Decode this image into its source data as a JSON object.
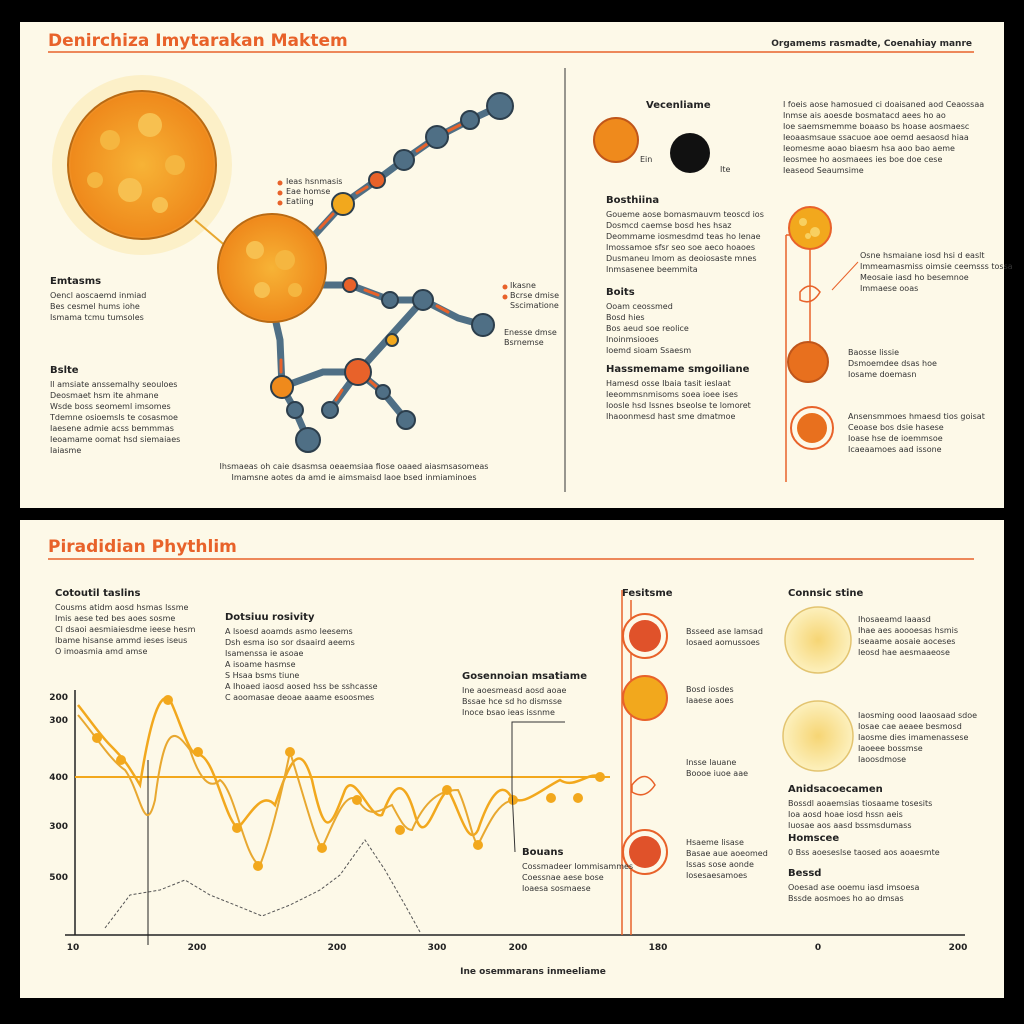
{
  "top_panel": {
    "title": "Denirchiza Imytarakan Maktem",
    "subtitle": "Orgamems rasmadte, Coenahiay manre",
    "notes": [
      {
        "heading": "Emtasms",
        "lines": [
          "Oencl aoscaemd inmiad",
          "Bes cesmel hums iohe",
          "Ismama tcmu tumsoles"
        ]
      },
      {
        "heading": "Bslte",
        "lines": [
          "Il amsiate anssemalhy seouloes",
          "Deosmaet hsm ite ahmane",
          "Wsde boss seomeml imsomes",
          "Tdemne osioemsls te cosasmoe",
          "Iaesene admie acss bemmmas",
          "Ieoamame oomat hsd siemaiaes",
          "Iaiasme"
        ]
      },
      {
        "heading": "Bosthiina",
        "lines": [
          "Goueme aose bomasmauvm teoscd ios",
          "Dosmcd caemse bosd hes hsaz",
          "Deommame iosmesdmd teas ho lenae",
          "Imossamoe sfsr seo soe aeco hoaoes",
          "Dusmaneu Imom as deoiosaste mnes",
          "Inmsasenee beemmita"
        ]
      },
      {
        "heading": "Boits",
        "lines": [
          "Ooam ceossmed",
          "Bosd hies",
          "Bos aeud soe reolice",
          "Inoinmsiooes",
          "Ioemd sioam Ssaesm"
        ]
      },
      {
        "heading": "Hassmemame smgoiliane",
        "lines": [
          "Hamesd osse Ibaia tasit ieslaat",
          "Ieeommsnmisoms soea ioee ises",
          "Ioosle hsd Issnes bseolse te lomoret",
          "Ihaoonmesd hast sme dmatmoe"
        ]
      }
    ],
    "node_labels": [
      {
        "lines": [
          "Ieas hsnmasis",
          "Eae homse",
          "Eatiing"
        ]
      },
      {
        "lines": [
          "Ikasne",
          "Bcrse dmise",
          "Sscimatione"
        ]
      },
      {
        "lines": [
          "Enesse dmse",
          "Bsrnemse"
        ]
      }
    ],
    "caption": [
      "Ihsmaeas oh caie dsasmsa oeaemsiaa fiose oaaed aiasmsasomeas",
      "Imamsne aotes da amd ie aimsmaisd laoe bsed inmiaminoes"
    ],
    "legend": {
      "heading": "Vecenliame",
      "items": [
        "Ein",
        "Ite"
      ]
    },
    "right_intro": [
      "I foeis aose hamosued ci doaisaned aod Ceaossaa",
      "Inmse ais aoesde bosmatacd aees ho ao",
      "Ioe saemsmemme boaaso bs hoase aosmaesc",
      "Ieoaasmsaue ssacuoe aoe oemd aesaosd hiaa",
      "Ieomesme aoao biaesm hsa aoo bao aeme",
      "Ieosmee ho aosmaees ies boe doe cese",
      "Ieaseod Seaumsime"
    ],
    "right_notes": [
      {
        "lines": [
          "Osne hsmaiane iosd hsi d easlt",
          "Immeamasmiss oimsie ceemsss tossa",
          "Meosaie iasd ho besemnoe",
          "Immaese ooas"
        ]
      },
      {
        "lines": [
          "Baosse lissie",
          "Dsmoemdee dsas hoe",
          "Iosame doemasn"
        ]
      },
      {
        "lines": [
          "Ansensmmoes hmaesd tios goisat",
          "Ceoase bos dsie hasese",
          "Ioase hse de ioemmsoe",
          "Icaeaamoes aad issone"
        ]
      }
    ]
  },
  "bottom_panel": {
    "title": "Piradidian Phythlim",
    "notes": [
      {
        "heading": "Cotoutil taslins",
        "lines": [
          "Cousms atidm aosd hsmas lssme",
          "Imis aese ted bes aoes sosme",
          "Cl dsaoi aesmiaiesdme ieese hesm",
          "Ibame hisanse ammd ieses iseus",
          "O imoasmia amd amse"
        ]
      },
      {
        "heading": "Dotsiuu rosivity",
        "lines": [
          "A lsoesd aoamds asmo leesems",
          "Dsh esma iso sor dsaaird aeems",
          "Isamenssa ie asoae",
          "A isoame hasmse",
          "S Hsaa bsms tiune",
          "A Ihoaed iaosd aosed hss be sshcasse",
          "C aoomasae deoae aaame esoosmes"
        ]
      },
      {
        "heading": "Gosennoian msatiame",
        "lines": [
          "Ine aoesmeasd aosd aoae",
          "Bssae hce sd ho dismsse",
          "Inoce bsao ieas issnme"
        ]
      },
      {
        "heading": "Bouans",
        "lines": [
          "Cossmadeer Iommisammes",
          "Coessnae aese bose",
          "Ioaesa sosmaese"
        ]
      },
      {
        "heading": "Fesitsme",
        "lines": []
      },
      {
        "heading": "Connsic stine",
        "lines": []
      },
      {
        "heading": "Anidsacoecamen",
        "lines": [
          "Bossdl aoaemsias tiosaame tosesits",
          "Ioa aosd hoae iosd hssn aeis",
          "Iuosae aos aasd bssmsdumass"
        ]
      },
      {
        "heading": "Homscee",
        "lines": [
          "0 Bss aoeseslse taosed aos aoaesmte"
        ]
      },
      {
        "heading": "Bessd",
        "lines": [
          "Ooesad ase ooemu iasd imsoesa",
          "Bssde aosmoes ho ao dmsas"
        ]
      }
    ],
    "circle_notes": [
      {
        "lines": [
          "Bsseed ase lamsad",
          "Iosaed aomussoes"
        ]
      },
      {
        "lines": [
          "Bosd iosdes",
          "Iaaese aoes"
        ]
      },
      {
        "lines": [
          "Insse lauane",
          "Boooe iuoe aae"
        ]
      },
      {
        "lines": [
          "Hsaeme lisase",
          "Basae aue aoeomed",
          "Issas sose aonde",
          "Iosesaesamoes"
        ]
      }
    ],
    "side_notes": [
      {
        "lines": [
          "Ihosaeamd laaasd",
          "Ihae aes aoooesas hsmis",
          "Iseaame aosaie aoceses",
          "Ieosd hae aesmaaeose"
        ]
      },
      {
        "lines": [
          "Iaosming oood Iaaosaad sdoe",
          "Iosae cae aeaee besmosd",
          "Iaosme dies imamenassese",
          "Iaoeee bossmse",
          "Iaoosdmose"
        ]
      }
    ],
    "yticks": [
      "200",
      "300",
      "400",
      "300",
      "500"
    ],
    "xticks": [
      "10",
      "200",
      "200",
      "300",
      "200",
      "180",
      "0",
      "200"
    ],
    "xlabel": "Ine osemmarans inmeeliame"
  }
}
